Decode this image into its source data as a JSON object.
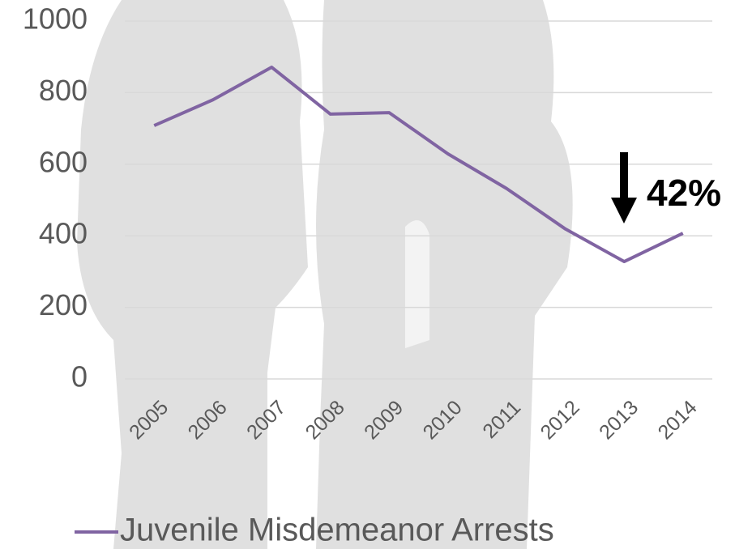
{
  "chart_data": {
    "type": "line",
    "categories": [
      "2005",
      "2006",
      "2007",
      "2008",
      "2009",
      "2010",
      "2011",
      "2012",
      "2013",
      "2014"
    ],
    "series": [
      {
        "name": "Juvenile Misdemeanor Arrests",
        "color": "#8064a2",
        "values": [
          708,
          780,
          871,
          740,
          744,
          629,
          532,
          419,
          328,
          407
        ]
      }
    ],
    "ylim": [
      0,
      1000
    ],
    "yticks": [
      0,
      200,
      400,
      600,
      800,
      1000
    ],
    "grid": true,
    "annotation": "42%",
    "legend": "bottom"
  }
}
